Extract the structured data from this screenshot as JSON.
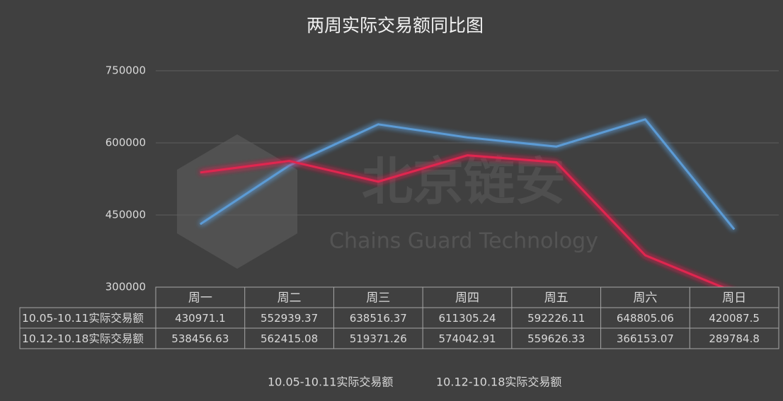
{
  "chart_data": {
    "type": "line",
    "title": "两周实际交易额同比图",
    "categories": [
      "周一",
      "周二",
      "周三",
      "周四",
      "周五",
      "周六",
      "周日"
    ],
    "series": [
      {
        "name": "10.05-10.11实际交易额",
        "color": "#5b9bd5",
        "values": [
          430971.1,
          552939.37,
          638516.37,
          611305.24,
          592226.11,
          648805.06,
          420087.5
        ]
      },
      {
        "name": "10.12-10.18实际交易额",
        "color": "#e0284f",
        "values": [
          538456.63,
          562415.08,
          519371.26,
          574042.91,
          559626.33,
          366153.07,
          289784.8
        ]
      }
    ],
    "ylim": [
      300000,
      750000
    ],
    "yticks": [
      300000,
      450000,
      600000,
      750000
    ],
    "grid": true,
    "data_table": true,
    "legend": "bottom",
    "annotations": [
      "北京链安",
      "Chains Guard Technology"
    ]
  }
}
